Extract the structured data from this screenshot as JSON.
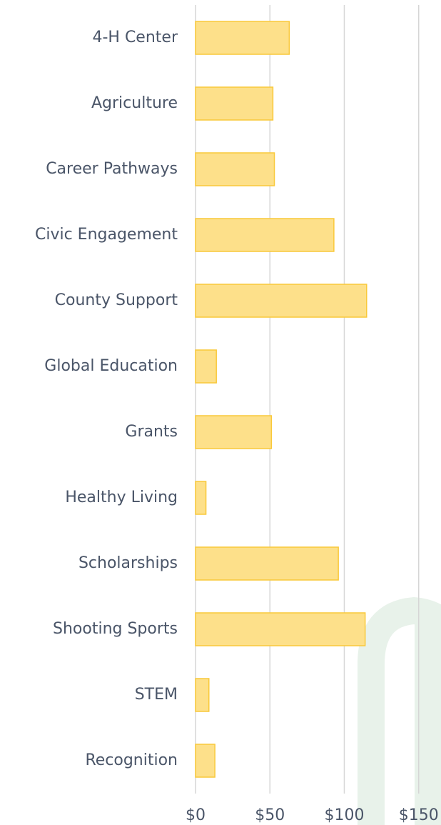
{
  "chart_data": {
    "type": "barh",
    "categories": [
      "4-H Center",
      "Agriculture",
      "Career Pathways",
      "Civic Engagement",
      "County Support",
      "Global Education",
      "Grants",
      "Healthy Living",
      "Scholarships",
      "Shooting Sports",
      "STEM",
      "Recognition"
    ],
    "values": [
      63,
      52,
      53,
      93,
      115,
      14,
      51,
      7,
      96,
      114,
      9,
      13
    ],
    "color": "#fde08a",
    "edge_color": "#f9c93a",
    "xlim": [
      0,
      165
    ],
    "xticks": [
      {
        "value": 0,
        "label": "$0"
      },
      {
        "value": 50,
        "label": "$50"
      },
      {
        "value": 100,
        "label": "$100"
      },
      {
        "value": 150,
        "label": "$150"
      }
    ],
    "grid": true
  }
}
